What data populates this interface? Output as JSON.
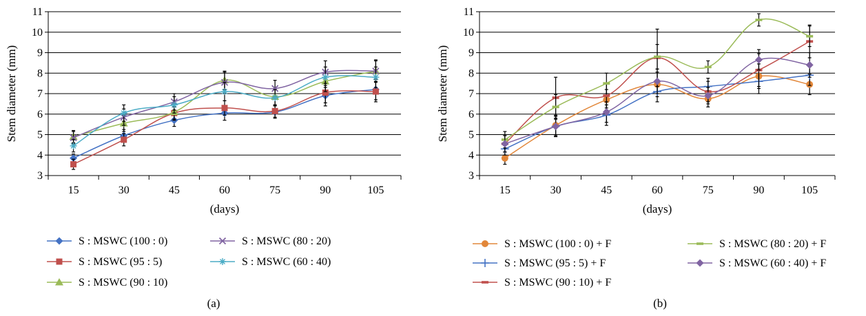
{
  "chart_data": [
    {
      "type": "line",
      "panel_label": "(a)",
      "xlabel": "(days)",
      "ylabel": "Stem diameter (mm)",
      "ylim": [
        3,
        11
      ],
      "yticks": [
        3,
        4,
        5,
        6,
        7,
        8,
        9,
        10,
        11
      ],
      "categories": [
        "15",
        "30",
        "45",
        "60",
        "75",
        "90",
        "105"
      ],
      "grid": "horizontal",
      "legend_position": "bottom",
      "series": [
        {
          "name": "S : MSWC (100 : 0)",
          "color": "#4472C4",
          "marker": "diamond",
          "values": [
            3.85,
            4.95,
            5.7,
            6.05,
            6.1,
            6.9,
            7.2
          ],
          "err": [
            0.2,
            0.3,
            0.3,
            0.35,
            0.3,
            0.5,
            0.5
          ]
        },
        {
          "name": "S : MSWC (95 : 5)",
          "color": "#C0504D",
          "marker": "square",
          "values": [
            3.55,
            4.75,
            6.05,
            6.3,
            6.15,
            7.05,
            7.1
          ],
          "err": [
            0.25,
            0.3,
            0.3,
            0.35,
            0.3,
            0.5,
            0.5
          ]
        },
        {
          "name": "S : MSWC (90 : 10)",
          "color": "#9BBB59",
          "marker": "triangle",
          "values": [
            4.9,
            5.55,
            6.1,
            7.65,
            6.85,
            7.6,
            8.1
          ],
          "err": [
            0.3,
            0.4,
            0.4,
            0.45,
            0.4,
            0.5,
            0.5
          ]
        },
        {
          "name": "S : MSWC (80 : 20)",
          "color": "#8064A2",
          "marker": "x",
          "values": [
            4.85,
            5.85,
            6.6,
            7.55,
            7.25,
            8.05,
            8.1
          ],
          "err": [
            0.3,
            0.4,
            0.4,
            0.5,
            0.4,
            0.55,
            0.55
          ]
        },
        {
          "name": "S : MSWC (60 : 40)",
          "color": "#4BACC6",
          "marker": "star",
          "values": [
            4.45,
            6.05,
            6.45,
            7.1,
            6.8,
            7.8,
            7.8
          ],
          "err": [
            0.3,
            0.4,
            0.4,
            0.45,
            0.4,
            0.5,
            0.5
          ]
        }
      ]
    },
    {
      "type": "line",
      "panel_label": "(b)",
      "xlabel": "(days)",
      "ylabel": "Stem diameter (mm)",
      "ylim": [
        3,
        11
      ],
      "yticks": [
        3,
        4,
        5,
        6,
        7,
        8,
        9,
        10,
        11
      ],
      "categories": [
        "15",
        "30",
        "45",
        "60",
        "75",
        "90",
        "105"
      ],
      "grid": "horizontal",
      "legend_position": "bottom",
      "series": [
        {
          "name": "S : MSWC (100 : 0) + F",
          "color": "#E2873A",
          "marker": "circle",
          "values": [
            3.85,
            5.45,
            6.7,
            7.45,
            6.75,
            7.85,
            7.45
          ],
          "err": [
            0.3,
            0.5,
            0.5,
            0.6,
            0.4,
            0.6,
            0.5
          ]
        },
        {
          "name": "S : MSWC (95 : 5) + F",
          "color": "#4472C4",
          "marker": "plus",
          "values": [
            4.3,
            5.4,
            5.95,
            7.1,
            7.35,
            7.6,
            7.9
          ],
          "err": [
            0.3,
            0.5,
            0.5,
            0.5,
            0.4,
            0.6,
            0.5
          ]
        },
        {
          "name": "S : MSWC (90 : 10) + F",
          "color": "#C0504D",
          "marker": "dash",
          "values": [
            4.55,
            6.8,
            6.9,
            8.75,
            7.1,
            8.15,
            9.55
          ],
          "err": [
            0.4,
            1.0,
            0.6,
            1.4,
            0.5,
            0.8,
            0.8
          ]
        },
        {
          "name": "S : MSWC (80 : 20) + F",
          "color": "#9BBB59",
          "marker": "dash",
          "values": [
            4.75,
            6.35,
            7.5,
            8.8,
            8.3,
            10.6,
            9.8
          ],
          "err": [
            0.4,
            0.6,
            0.5,
            0.6,
            0.3,
            0.3,
            0.5
          ]
        },
        {
          "name": "S : MSWC (60 : 40) + F",
          "color": "#8064A2",
          "marker": "diamond",
          "values": [
            4.55,
            5.4,
            6.1,
            7.6,
            6.9,
            8.65,
            8.4
          ],
          "err": [
            0.4,
            0.5,
            0.5,
            0.6,
            0.4,
            0.5,
            0.6
          ]
        }
      ]
    }
  ]
}
